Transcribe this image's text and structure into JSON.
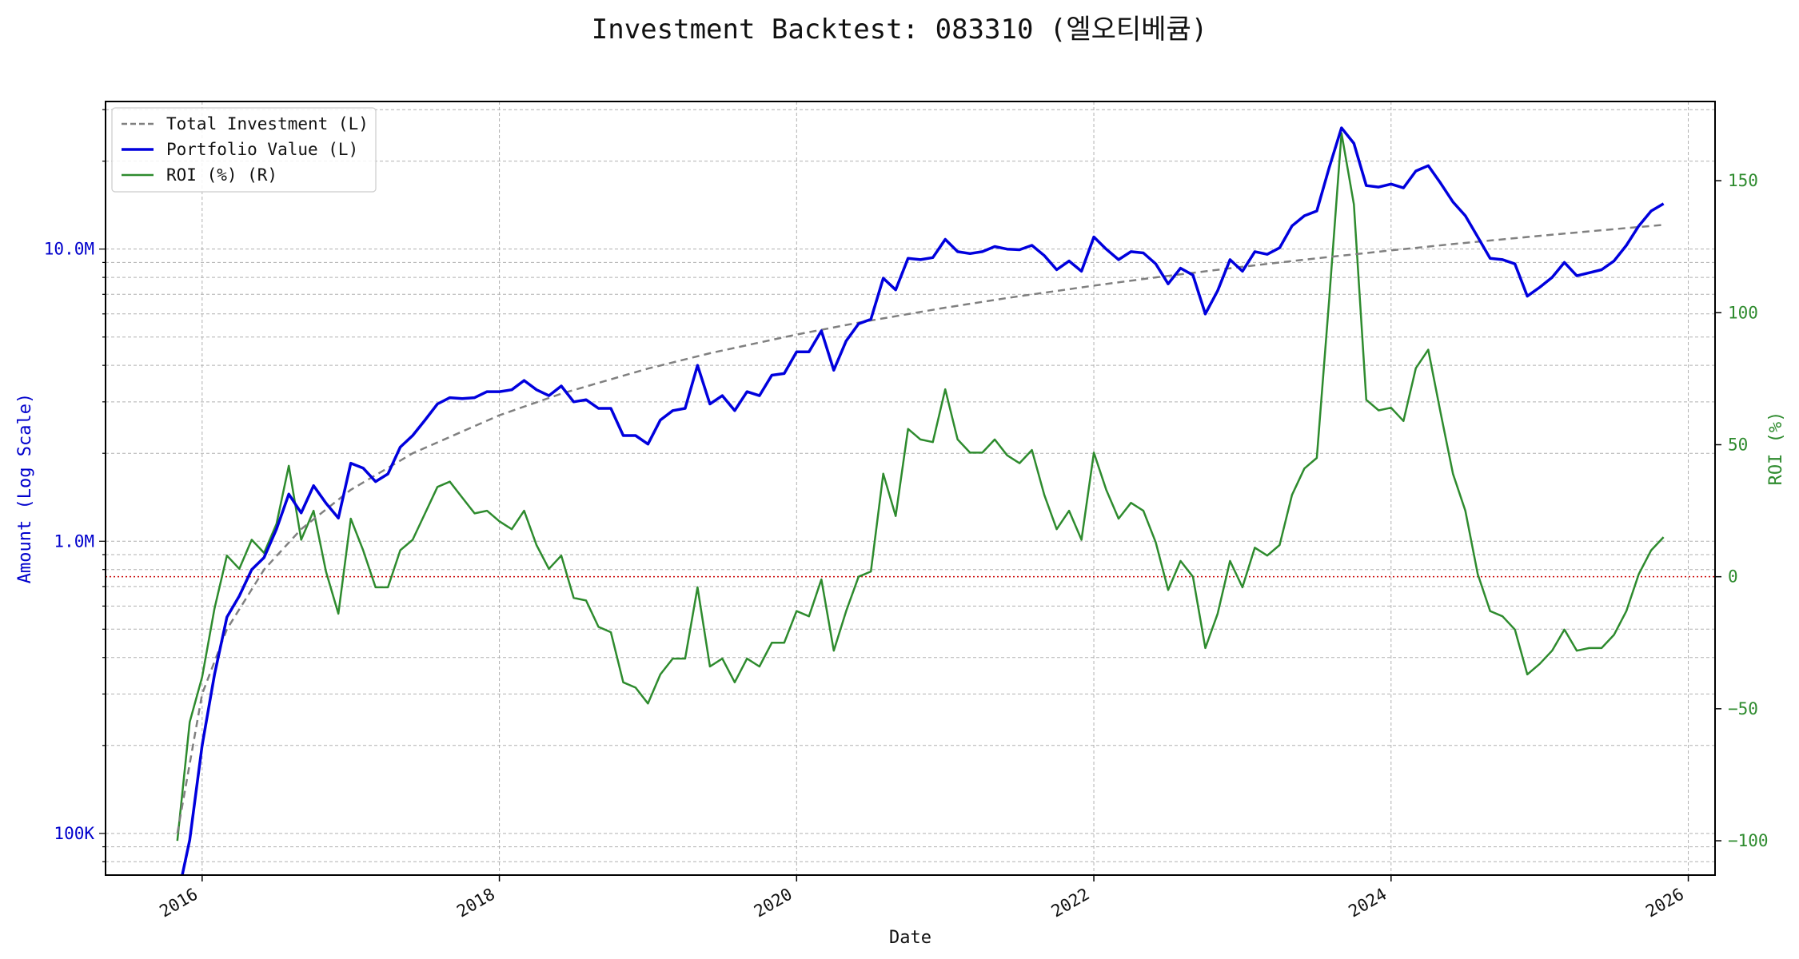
{
  "chart_data": {
    "type": "line",
    "title": "Investment Backtest: 083310 (엘오티베큠)",
    "xlabel": "Date",
    "ylabel_left": "Amount (Log Scale)",
    "ylabel_right": "ROI (%)",
    "left_axis": {
      "scale": "log",
      "ylim": [
        72000,
        32000000
      ],
      "ticks": [
        {
          "value": 100000,
          "label": "100K"
        },
        {
          "value": 1000000,
          "label": "1.0M"
        },
        {
          "value": 10000000,
          "label": "10.0M"
        }
      ]
    },
    "right_axis": {
      "scale": "linear",
      "ylim": [
        -113,
        180
      ],
      "ticks": [
        -100,
        -50,
        0,
        50,
        100,
        150
      ],
      "zero_line": 0
    },
    "x_axis": {
      "range_years": [
        2015.35,
        2026.18
      ],
      "ticks": [
        "2016",
        "2018",
        "2020",
        "2022",
        "2024",
        "2026"
      ]
    },
    "grid": true,
    "legend_position": "top-left",
    "colors": {
      "total_investment": "#808080",
      "portfolio": "#0000dd",
      "roi": "#2e8b2e",
      "zero_line": "#cc0000",
      "left_axis_text": "#0000cc",
      "right_axis_text": "#2e8b2e"
    },
    "series": [
      {
        "name": "Total Investment (L)",
        "axis": "left",
        "style": "dashed",
        "points": [
          [
            "2015-11",
            100000
          ],
          [
            "2016-01",
            300000
          ],
          [
            "2016-03",
            500000
          ],
          [
            "2016-06",
            800000
          ],
          [
            "2016-09",
            1100000
          ],
          [
            "2017-01",
            1500000
          ],
          [
            "2017-06",
            2000000
          ],
          [
            "2018-01",
            2700000
          ],
          [
            "2018-06",
            3200000
          ],
          [
            "2019-01",
            3900000
          ],
          [
            "2019-06",
            4400000
          ],
          [
            "2020-01",
            5100000
          ],
          [
            "2020-06",
            5600000
          ],
          [
            "2021-01",
            6300000
          ],
          [
            "2021-06",
            6800000
          ],
          [
            "2022-01",
            7500000
          ],
          [
            "2022-06",
            8000000
          ],
          [
            "2023-01",
            8700000
          ],
          [
            "2023-06",
            9200000
          ],
          [
            "2024-01",
            9900000
          ],
          [
            "2024-06",
            10400000
          ],
          [
            "2025-01",
            11100000
          ],
          [
            "2025-06",
            11600000
          ],
          [
            "2025-11",
            12100000
          ]
        ]
      },
      {
        "name": "Portfolio Value (L)",
        "axis": "left",
        "style": "solid",
        "points": [
          [
            "2015-11",
            60000
          ],
          [
            "2015-12",
            95000
          ],
          [
            "2016-01",
            200000
          ],
          [
            "2016-02",
            350000
          ],
          [
            "2016-03",
            550000
          ],
          [
            "2016-04",
            650000
          ],
          [
            "2016-05",
            800000
          ],
          [
            "2016-06",
            880000
          ],
          [
            "2016-07",
            1100000
          ],
          [
            "2016-08",
            1450000
          ],
          [
            "2016-09",
            1250000
          ],
          [
            "2016-10",
            1550000
          ],
          [
            "2016-11",
            1350000
          ],
          [
            "2016-12",
            1200000
          ],
          [
            "2017-01",
            1850000
          ],
          [
            "2017-02",
            1780000
          ],
          [
            "2017-03",
            1600000
          ],
          [
            "2017-04",
            1700000
          ],
          [
            "2017-05",
            2100000
          ],
          [
            "2017-06",
            2300000
          ],
          [
            "2017-07",
            2600000
          ],
          [
            "2017-08",
            2950000
          ],
          [
            "2017-09",
            3100000
          ],
          [
            "2017-10",
            3080000
          ],
          [
            "2017-11",
            3100000
          ],
          [
            "2017-12",
            3250000
          ],
          [
            "2018-01",
            3250000
          ],
          [
            "2018-02",
            3300000
          ],
          [
            "2018-03",
            3550000
          ],
          [
            "2018-04",
            3300000
          ],
          [
            "2018-05",
            3150000
          ],
          [
            "2018-06",
            3400000
          ],
          [
            "2018-07",
            3000000
          ],
          [
            "2018-08",
            3050000
          ],
          [
            "2018-09",
            2850000
          ],
          [
            "2018-10",
            2850000
          ],
          [
            "2018-11",
            2300000
          ],
          [
            "2018-12",
            2300000
          ],
          [
            "2019-01",
            2150000
          ],
          [
            "2019-02",
            2600000
          ],
          [
            "2019-03",
            2800000
          ],
          [
            "2019-04",
            2850000
          ],
          [
            "2019-05",
            4000000
          ],
          [
            "2019-06",
            2950000
          ],
          [
            "2019-07",
            3150000
          ],
          [
            "2019-08",
            2800000
          ],
          [
            "2019-09",
            3250000
          ],
          [
            "2019-10",
            3150000
          ],
          [
            "2019-11",
            3700000
          ],
          [
            "2019-12",
            3750000
          ],
          [
            "2020-01",
            4450000
          ],
          [
            "2020-02",
            4450000
          ],
          [
            "2020-03",
            5250000
          ],
          [
            "2020-04",
            3850000
          ],
          [
            "2020-05",
            4850000
          ],
          [
            "2020-06",
            5550000
          ],
          [
            "2020-07",
            5750000
          ],
          [
            "2020-08",
            7950000
          ],
          [
            "2020-09",
            7250000
          ],
          [
            "2020-10",
            9300000
          ],
          [
            "2020-11",
            9200000
          ],
          [
            "2020-12",
            9350000
          ],
          [
            "2021-01",
            10800000
          ],
          [
            "2021-02",
            9800000
          ],
          [
            "2021-03",
            9650000
          ],
          [
            "2021-04",
            9800000
          ],
          [
            "2021-05",
            10200000
          ],
          [
            "2021-06",
            10000000
          ],
          [
            "2021-07",
            9950000
          ],
          [
            "2021-08",
            10300000
          ],
          [
            "2021-09",
            9500000
          ],
          [
            "2021-10",
            8500000
          ],
          [
            "2021-11",
            9100000
          ],
          [
            "2021-12",
            8400000
          ],
          [
            "2022-01",
            11000000
          ],
          [
            "2022-02",
            10000000
          ],
          [
            "2022-03",
            9200000
          ],
          [
            "2022-04",
            9800000
          ],
          [
            "2022-05",
            9700000
          ],
          [
            "2022-06",
            8900000
          ],
          [
            "2022-07",
            7600000
          ],
          [
            "2022-08",
            8600000
          ],
          [
            "2022-09",
            8150000
          ],
          [
            "2022-10",
            6000000
          ],
          [
            "2022-11",
            7200000
          ],
          [
            "2022-12",
            9200000
          ],
          [
            "2023-01",
            8400000
          ],
          [
            "2023-02",
            9800000
          ],
          [
            "2023-03",
            9600000
          ],
          [
            "2023-04",
            10100000
          ],
          [
            "2023-05",
            12000000
          ],
          [
            "2023-06",
            13000000
          ],
          [
            "2023-07",
            13500000
          ],
          [
            "2023-08",
            19000000
          ],
          [
            "2023-09",
            26000000
          ],
          [
            "2023-10",
            23000000
          ],
          [
            "2023-11",
            16500000
          ],
          [
            "2023-12",
            16300000
          ],
          [
            "2024-01",
            16700000
          ],
          [
            "2024-02",
            16200000
          ],
          [
            "2024-03",
            18500000
          ],
          [
            "2024-04",
            19300000
          ],
          [
            "2024-05",
            16800000
          ],
          [
            "2024-06",
            14500000
          ],
          [
            "2024-07",
            13000000
          ],
          [
            "2024-08",
            11000000
          ],
          [
            "2024-09",
            9300000
          ],
          [
            "2024-10",
            9200000
          ],
          [
            "2024-11",
            8900000
          ],
          [
            "2024-12",
            6900000
          ],
          [
            "2025-01",
            7400000
          ],
          [
            "2025-02",
            8000000
          ],
          [
            "2025-03",
            9000000
          ],
          [
            "2025-04",
            8100000
          ],
          [
            "2025-05",
            8300000
          ],
          [
            "2025-06",
            8500000
          ],
          [
            "2025-07",
            9100000
          ],
          [
            "2025-08",
            10300000
          ],
          [
            "2025-09",
            12000000
          ],
          [
            "2025-10",
            13500000
          ],
          [
            "2025-11",
            14300000
          ]
        ]
      },
      {
        "name": "ROI (%) (R)",
        "axis": "right",
        "style": "solid",
        "points": [
          [
            "2015-11",
            -100
          ],
          [
            "2015-12",
            -55
          ],
          [
            "2016-01",
            -38
          ],
          [
            "2016-02",
            -12
          ],
          [
            "2016-03",
            8
          ],
          [
            "2016-04",
            3
          ],
          [
            "2016-05",
            14
          ],
          [
            "2016-06",
            9
          ],
          [
            "2016-07",
            20
          ],
          [
            "2016-08",
            42
          ],
          [
            "2016-09",
            14
          ],
          [
            "2016-10",
            25
          ],
          [
            "2016-11",
            2
          ],
          [
            "2016-12",
            -14
          ],
          [
            "2017-01",
            22
          ],
          [
            "2017-02",
            10
          ],
          [
            "2017-03",
            -4
          ],
          [
            "2017-04",
            -4
          ],
          [
            "2017-05",
            10
          ],
          [
            "2017-06",
            14
          ],
          [
            "2017-07",
            24
          ],
          [
            "2017-08",
            34
          ],
          [
            "2017-09",
            36
          ],
          [
            "2017-10",
            30
          ],
          [
            "2017-11",
            24
          ],
          [
            "2017-12",
            25
          ],
          [
            "2018-01",
            21
          ],
          [
            "2018-02",
            18
          ],
          [
            "2018-03",
            25
          ],
          [
            "2018-04",
            12
          ],
          [
            "2018-05",
            3
          ],
          [
            "2018-06",
            8
          ],
          [
            "2018-07",
            -8
          ],
          [
            "2018-08",
            -9
          ],
          [
            "2018-09",
            -19
          ],
          [
            "2018-10",
            -21
          ],
          [
            "2018-11",
            -40
          ],
          [
            "2018-12",
            -42
          ],
          [
            "2019-01",
            -48
          ],
          [
            "2019-02",
            -37
          ],
          [
            "2019-03",
            -31
          ],
          [
            "2019-04",
            -31
          ],
          [
            "2019-05",
            -4
          ],
          [
            "2019-06",
            -34
          ],
          [
            "2019-07",
            -31
          ],
          [
            "2019-08",
            -40
          ],
          [
            "2019-09",
            -31
          ],
          [
            "2019-10",
            -34
          ],
          [
            "2019-11",
            -25
          ],
          [
            "2019-12",
            -25
          ],
          [
            "2020-01",
            -13
          ],
          [
            "2020-02",
            -15
          ],
          [
            "2020-03",
            -1
          ],
          [
            "2020-04",
            -28
          ],
          [
            "2020-05",
            -13
          ],
          [
            "2020-06",
            0
          ],
          [
            "2020-07",
            2
          ],
          [
            "2020-08",
            39
          ],
          [
            "2020-09",
            23
          ],
          [
            "2020-10",
            56
          ],
          [
            "2020-11",
            52
          ],
          [
            "2020-12",
            51
          ],
          [
            "2021-01",
            71
          ],
          [
            "2021-02",
            52
          ],
          [
            "2021-03",
            47
          ],
          [
            "2021-04",
            47
          ],
          [
            "2021-05",
            52
          ],
          [
            "2021-06",
            46
          ],
          [
            "2021-07",
            43
          ],
          [
            "2021-08",
            48
          ],
          [
            "2021-09",
            31
          ],
          [
            "2021-10",
            18
          ],
          [
            "2021-11",
            25
          ],
          [
            "2021-12",
            14
          ],
          [
            "2022-01",
            47
          ],
          [
            "2022-02",
            33
          ],
          [
            "2022-03",
            22
          ],
          [
            "2022-04",
            28
          ],
          [
            "2022-05",
            25
          ],
          [
            "2022-06",
            13
          ],
          [
            "2022-07",
            -5
          ],
          [
            "2022-08",
            6
          ],
          [
            "2022-09",
            0
          ],
          [
            "2022-10",
            -27
          ],
          [
            "2022-11",
            -14
          ],
          [
            "2022-12",
            6
          ],
          [
            "2023-01",
            -4
          ],
          [
            "2023-02",
            11
          ],
          [
            "2023-03",
            8
          ],
          [
            "2023-04",
            12
          ],
          [
            "2023-05",
            31
          ],
          [
            "2023-06",
            41
          ],
          [
            "2023-07",
            45
          ],
          [
            "2023-08",
            105
          ],
          [
            "2023-09",
            168
          ],
          [
            "2023-10",
            141
          ],
          [
            "2023-11",
            67
          ],
          [
            "2023-12",
            63
          ],
          [
            "2024-01",
            64
          ],
          [
            "2024-02",
            59
          ],
          [
            "2024-03",
            79
          ],
          [
            "2024-04",
            86
          ],
          [
            "2024-05",
            62
          ],
          [
            "2024-06",
            39
          ],
          [
            "2024-07",
            25
          ],
          [
            "2024-08",
            1
          ],
          [
            "2024-09",
            -13
          ],
          [
            "2024-10",
            -15
          ],
          [
            "2024-11",
            -20
          ],
          [
            "2024-12",
            -37
          ],
          [
            "2025-01",
            -33
          ],
          [
            "2025-02",
            -28
          ],
          [
            "2025-03",
            -20
          ],
          [
            "2025-04",
            -28
          ],
          [
            "2025-05",
            -27
          ],
          [
            "2025-06",
            -27
          ],
          [
            "2025-07",
            -22
          ],
          [
            "2025-08",
            -13
          ],
          [
            "2025-09",
            1
          ],
          [
            "2025-10",
            10
          ],
          [
            "2025-11",
            15
          ]
        ]
      }
    ]
  }
}
